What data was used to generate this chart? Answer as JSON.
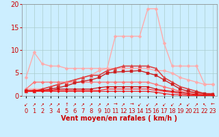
{
  "title": "",
  "xlabel": "Vent moyen/en rafales ( km/h )",
  "x": [
    0,
    1,
    2,
    3,
    4,
    5,
    6,
    7,
    8,
    9,
    10,
    11,
    12,
    13,
    14,
    15,
    16,
    17,
    18,
    19,
    20,
    21,
    22,
    23
  ],
  "lines": [
    {
      "y": [
        4.0,
        9.5,
        7.0,
        6.5,
        6.5,
        6.0,
        6.0,
        6.0,
        6.0,
        6.0,
        6.0,
        6.0,
        6.0,
        6.0,
        6.0,
        6.0,
        5.5,
        5.5,
        5.0,
        4.0,
        3.5,
        3.0,
        2.5,
        2.5
      ],
      "color": "#ffaaaa",
      "marker": "D",
      "markersize": 2.5,
      "linewidth": 1.0
    },
    {
      "y": [
        1.5,
        1.5,
        1.5,
        2.0,
        2.5,
        3.0,
        3.5,
        4.0,
        4.5,
        5.5,
        6.0,
        13.0,
        13.0,
        13.0,
        13.0,
        19.0,
        19.0,
        11.5,
        6.5,
        6.5,
        6.5,
        6.5,
        2.5,
        2.5
      ],
      "color": "#ffaaaa",
      "marker": "D",
      "markersize": 2.5,
      "linewidth": 1.0
    },
    {
      "y": [
        1.0,
        1.0,
        1.5,
        2.0,
        2.5,
        3.0,
        3.5,
        4.0,
        4.5,
        4.5,
        5.5,
        6.0,
        6.5,
        6.5,
        6.5,
        6.5,
        6.0,
        4.0,
        3.0,
        2.0,
        1.5,
        1.0,
        0.5,
        0.5
      ],
      "color": "#dd4444",
      "marker": "^",
      "markersize": 3.5,
      "linewidth": 1.2
    },
    {
      "y": [
        1.5,
        3.0,
        3.0,
        3.0,
        3.0,
        3.0,
        3.0,
        3.0,
        3.0,
        3.0,
        3.0,
        3.0,
        3.0,
        3.0,
        3.0,
        3.0,
        2.5,
        2.0,
        1.5,
        1.0,
        0.8,
        0.5,
        0.3,
        0.2
      ],
      "color": "#ff7777",
      "marker": "D",
      "markersize": 2.5,
      "linewidth": 1.0
    },
    {
      "y": [
        1.0,
        1.0,
        1.2,
        1.5,
        1.8,
        2.2,
        2.8,
        3.2,
        3.5,
        4.0,
        5.0,
        5.2,
        5.3,
        5.4,
        5.5,
        5.0,
        4.5,
        3.5,
        2.5,
        1.5,
        1.0,
        0.7,
        0.5,
        0.3
      ],
      "color": "#cc2222",
      "marker": "s",
      "markersize": 2.5,
      "linewidth": 1.0
    },
    {
      "y": [
        1.2,
        1.2,
        1.2,
        1.2,
        1.5,
        1.5,
        1.5,
        1.5,
        1.5,
        1.8,
        2.0,
        2.0,
        2.0,
        2.0,
        2.0,
        2.0,
        1.5,
        1.2,
        1.0,
        0.8,
        0.5,
        0.3,
        0.2,
        0.1
      ],
      "color": "#cc0000",
      "marker": "D",
      "markersize": 2.0,
      "linewidth": 0.8
    },
    {
      "y": [
        1.0,
        1.2,
        1.2,
        1.2,
        1.2,
        1.2,
        1.2,
        1.2,
        1.2,
        1.2,
        1.5,
        1.5,
        1.5,
        1.5,
        1.5,
        1.5,
        1.2,
        1.0,
        0.8,
        0.5,
        0.3,
        0.2,
        0.1,
        0.1
      ],
      "color": "#ff2222",
      "marker": "s",
      "markersize": 2.0,
      "linewidth": 0.8
    },
    {
      "y": [
        1.0,
        1.0,
        1.0,
        1.0,
        1.0,
        1.0,
        1.0,
        1.0,
        1.0,
        1.0,
        1.0,
        1.0,
        1.0,
        1.0,
        1.0,
        1.0,
        0.8,
        0.5,
        0.3,
        0.2,
        0.1,
        0.1,
        0.1,
        0.1
      ],
      "color": "#ee1111",
      "marker": "D",
      "markersize": 2.0,
      "linewidth": 0.8
    }
  ],
  "wind_arrows": [
    "↙",
    "↗",
    "↗",
    "↗",
    "↗",
    "↑",
    "↗",
    "↗",
    "↗",
    "↗",
    "↗",
    "→",
    "↗",
    "→",
    "↙",
    "↙",
    "↗",
    "↙",
    "↙",
    "↗",
    "↙",
    "↗",
    "↖",
    "←"
  ],
  "ylim": [
    0,
    20
  ],
  "xlim": [
    -0.5,
    23.5
  ],
  "yticks": [
    0,
    5,
    10,
    15,
    20
  ],
  "xticks": [
    0,
    1,
    2,
    3,
    4,
    5,
    6,
    7,
    8,
    9,
    10,
    11,
    12,
    13,
    14,
    15,
    16,
    17,
    18,
    19,
    20,
    21,
    22,
    23
  ],
  "bg_color": "#cceeff",
  "grid_color": "#aacccc",
  "tick_color": "#cc0000",
  "label_color": "#cc0000",
  "arrow_fontsize": 5.0,
  "xlabel_fontsize": 7.0,
  "tick_fontsize": 6.0,
  "ytick_fontsize": 7.0
}
